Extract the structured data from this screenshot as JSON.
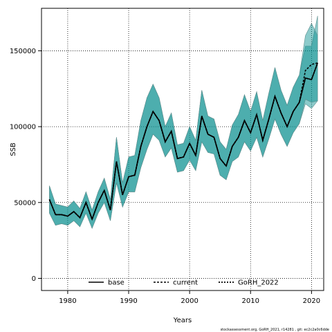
{
  "chart_data": {
    "type": "area",
    "xlabel": "Years",
    "ylabel": "SSB",
    "xlim": [
      1975.7,
      2022
    ],
    "ylim": [
      -8000,
      178000
    ],
    "x_ticks": [
      1980,
      1990,
      2000,
      2010,
      2020
    ],
    "x_tick_labels": [
      "1980",
      "1990",
      "2000",
      "2010",
      "2020"
    ],
    "y_ticks": [
      0,
      50000,
      100000,
      150000
    ],
    "y_tick_labels": [
      "0",
      "50000",
      "100000",
      "150000"
    ],
    "grid": true,
    "legend_position": "bottom",
    "x": [
      1977,
      1978,
      1979,
      1980,
      1981,
      1982,
      1983,
      1984,
      1985,
      1986,
      1987,
      1988,
      1989,
      1990,
      1991,
      1992,
      1993,
      1994,
      1995,
      1996,
      1997,
      1998,
      1999,
      2000,
      2001,
      2002,
      2003,
      2004,
      2005,
      2006,
      2007,
      2008,
      2009,
      2010,
      2011,
      2012,
      2013,
      2014,
      2015,
      2016,
      2017,
      2018,
      2019,
      2020,
      2021
    ],
    "series": [
      {
        "name": "base",
        "color": "#000000",
        "values": [
          52000,
          42000,
          42000,
          41000,
          44000,
          40000,
          50000,
          39000,
          50000,
          58000,
          45000,
          77000,
          55000,
          67000,
          68000,
          87000,
          100000,
          110000,
          104000,
          90000,
          97000,
          79000,
          80000,
          89000,
          81000,
          107000,
          95000,
          93000,
          79000,
          74000,
          87000,
          93000,
          104000,
          96000,
          108000,
          91000,
          105000,
          120000,
          109000,
          100000,
          110000,
          116000,
          132000,
          131000,
          142000
        ],
        "lower": [
          43000,
          35000,
          36000,
          35000,
          38000,
          34000,
          43000,
          33000,
          43000,
          50000,
          38000,
          63000,
          47000,
          57000,
          57000,
          73000,
          85000,
          95000,
          91000,
          80000,
          86000,
          70000,
          71000,
          78000,
          71000,
          90000,
          83000,
          82000,
          68000,
          65000,
          77000,
          80000,
          90000,
          84000,
          93000,
          80000,
          92000,
          105000,
          95000,
          87000,
          96000,
          102000,
          115000,
          112000,
          117000
        ],
        "upper": [
          61000,
          49000,
          48000,
          47000,
          51000,
          46000,
          57000,
          45000,
          57000,
          66000,
          52000,
          93000,
          63000,
          80000,
          81000,
          104000,
          119000,
          128000,
          119000,
          100000,
          109000,
          88000,
          89000,
          100000,
          91000,
          124000,
          107000,
          105000,
          90000,
          85000,
          101000,
          108000,
          121000,
          110000,
          123000,
          104000,
          122000,
          139000,
          124000,
          114000,
          126000,
          134000,
          153000,
          153000,
          173000
        ]
      },
      {
        "name": "current",
        "color": "#008b8b",
        "values": [
          52000,
          42000,
          42000,
          41000,
          44000,
          40000,
          50000,
          39000,
          50000,
          58000,
          45000,
          77000,
          55000,
          67000,
          68000,
          87000,
          100000,
          110000,
          104000,
          90000,
          97000,
          79000,
          80000,
          89000,
          81000,
          107000,
          95000,
          93000,
          79000,
          74000,
          87000,
          93000,
          104000,
          96000,
          108000,
          91000,
          105000,
          120000,
          109000,
          100000,
          110000,
          116000,
          137000,
          141000,
          142000
        ],
        "lower": [
          43000,
          35000,
          36000,
          35000,
          38000,
          34000,
          43000,
          33000,
          43000,
          50000,
          38000,
          63000,
          47000,
          57000,
          57000,
          73000,
          85000,
          95000,
          91000,
          80000,
          86000,
          70000,
          71000,
          78000,
          71000,
          90000,
          83000,
          82000,
          68000,
          65000,
          77000,
          80000,
          90000,
          84000,
          93000,
          80000,
          92000,
          105000,
          95000,
          87000,
          96000,
          102000,
          118000,
          116000,
          117000
        ],
        "upper": [
          61000,
          49000,
          48000,
          47000,
          51000,
          46000,
          57000,
          45000,
          57000,
          66000,
          52000,
          93000,
          63000,
          80000,
          81000,
          104000,
          119000,
          128000,
          119000,
          100000,
          109000,
          88000,
          89000,
          100000,
          91000,
          124000,
          107000,
          105000,
          90000,
          85000,
          101000,
          108000,
          121000,
          110000,
          123000,
          104000,
          122000,
          139000,
          124000,
          114000,
          126000,
          134000,
          160000,
          168000,
          160000
        ]
      },
      {
        "name": "GoRH_2022",
        "color": "#2e8b57",
        "values": [
          52000,
          42000,
          42000,
          41000,
          44000,
          40000,
          50000,
          39000,
          50000,
          58000,
          45000,
          77000,
          55000,
          67000,
          68000,
          87000,
          100000,
          110000,
          104000,
          90000,
          97000,
          79000,
          80000,
          89000,
          81000,
          107000,
          95000,
          93000,
          79000,
          74000,
          87000,
          93000,
          104000,
          96000,
          108000,
          91000,
          105000,
          120000,
          109000,
          100000,
          110000,
          116000,
          132000,
          131000,
          142000
        ]
      }
    ],
    "band_color": "#008b8b",
    "footer": "stockassessment.org, GoRH_2021, r14281 , git: ec2c2a0c6dde"
  }
}
